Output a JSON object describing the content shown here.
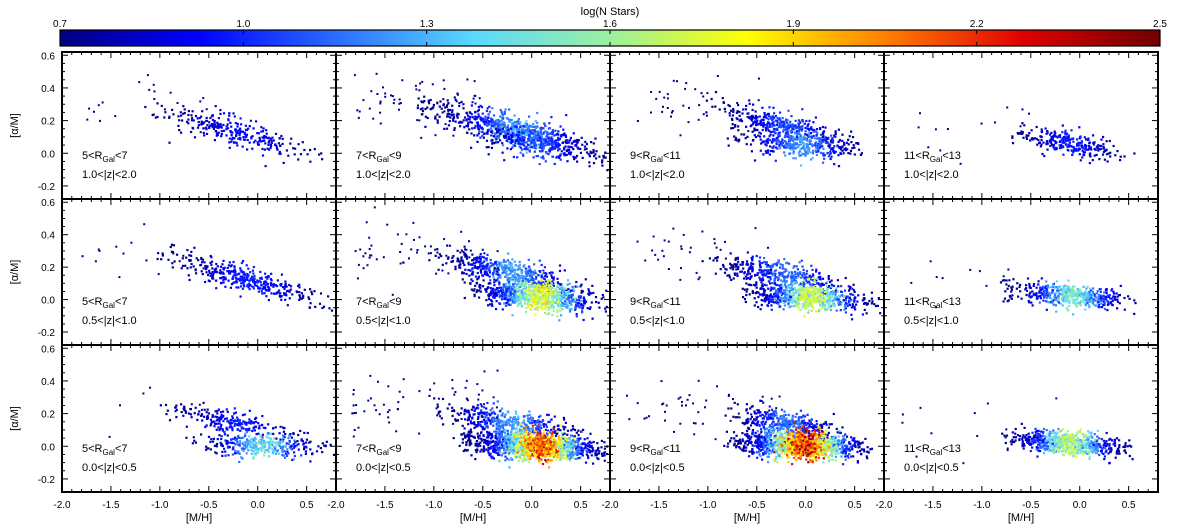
{
  "chart_data": {
    "type": "heatmap",
    "colorbar": {
      "label": "log(N Stars)",
      "min": 0.7,
      "max": 2.5,
      "tick_values": [
        0.7,
        1.0,
        1.3,
        1.6,
        1.9,
        2.2,
        2.5
      ],
      "tick_labels": [
        "0.7",
        "1.0",
        "1.3",
        "1.6",
        "1.9",
        "2.2",
        "2.5"
      ],
      "stops": [
        "#000080",
        "#0000ff",
        "#2a6cff",
        "#5ad8ff",
        "#9bf0a0",
        "#ffff00",
        "#ff8000",
        "#e00000",
        "#700000"
      ],
      "placement": "top"
    },
    "x_axis": {
      "label": "[M/H]",
      "range": [
        -2.0,
        0.8
      ],
      "tick_values": [
        -2.0,
        -1.5,
        -1.0,
        -0.5,
        0.0,
        0.5
      ],
      "tick_labels": [
        "-2.0",
        "-1.5",
        "-1.0",
        "-0.5",
        "0.0",
        "0.5"
      ]
    },
    "y_axis": {
      "label": "[α/M]",
      "range": [
        -0.28,
        0.62
      ],
      "tick_values": [
        -0.2,
        0.0,
        0.2,
        0.4,
        0.6
      ],
      "tick_labels": [
        "-0.2",
        "0.0",
        "0.2",
        "0.4",
        "0.6"
      ]
    },
    "grid": false,
    "panels": [
      {
        "row": 0,
        "col": 0,
        "r_label": "5<R",
        "r_sub": "Gal",
        "r_hi": "<7",
        "z_label": "1.0<|z|<2.0",
        "n": 280,
        "noise": 0.04,
        "outliers": 22,
        "ridges": [
          {
            "x0": -0.9,
            "y0": 0.25,
            "x1": 0.45,
            "y1": 0.02,
            "weight": 1.0,
            "peak": 0.95
          }
        ]
      },
      {
        "row": 0,
        "col": 1,
        "r_label": "7<R",
        "r_sub": "Gal",
        "r_hi": "<9",
        "z_label": "1.0<|z|<2.0",
        "n": 950,
        "noise": 0.045,
        "outliers": 70,
        "ridges": [
          {
            "x0": -0.9,
            "y0": 0.26,
            "x1": 0.5,
            "y1": 0.04,
            "weight": 0.75,
            "peak": 1.3
          },
          {
            "x0": -0.5,
            "y0": 0.12,
            "x1": 0.5,
            "y1": 0.02,
            "weight": 0.25,
            "peak": 1.1
          }
        ]
      },
      {
        "row": 0,
        "col": 2,
        "r_label": "9<R",
        "r_sub": "Gal",
        "r_hi": "<11",
        "z_label": "1.0<|z|<2.0",
        "n": 720,
        "noise": 0.04,
        "outliers": 40,
        "ridges": [
          {
            "x0": -0.8,
            "y0": 0.26,
            "x1": 0.3,
            "y1": 0.1,
            "weight": 0.45,
            "peak": 1.1
          },
          {
            "x0": -0.6,
            "y0": 0.1,
            "x1": 0.4,
            "y1": 0.03,
            "weight": 0.55,
            "peak": 1.3
          }
        ]
      },
      {
        "row": 0,
        "col": 3,
        "r_label": "11<R",
        "r_sub": "Gal",
        "r_hi": "<13",
        "z_label": "1.0<|z|<2.0",
        "n": 260,
        "noise": 0.035,
        "outliers": 14,
        "ridges": [
          {
            "x0": -0.6,
            "y0": 0.12,
            "x1": 0.3,
            "y1": 0.02,
            "weight": 1.0,
            "peak": 1.0
          }
        ]
      },
      {
        "row": 1,
        "col": 0,
        "r_label": "5<R",
        "r_sub": "Gal",
        "r_hi": "<7",
        "z_label": "0.5<|z|<1.0",
        "n": 380,
        "noise": 0.04,
        "outliers": 14,
        "ridges": [
          {
            "x0": -0.8,
            "y0": 0.25,
            "x1": 0.5,
            "y1": 0.02,
            "weight": 1.0,
            "peak": 1.0
          }
        ]
      },
      {
        "row": 1,
        "col": 1,
        "r_label": "7<R",
        "r_sub": "Gal",
        "r_hi": "<9",
        "z_label": "0.5<|z|<1.0",
        "n": 1350,
        "noise": 0.04,
        "outliers": 60,
        "ridges": [
          {
            "x0": -0.8,
            "y0": 0.24,
            "x1": 0.3,
            "y1": 0.1,
            "weight": 0.35,
            "peak": 1.3
          },
          {
            "x0": -0.5,
            "y0": 0.06,
            "x1": 0.55,
            "y1": 0.0,
            "weight": 0.65,
            "peak": 1.85
          }
        ]
      },
      {
        "row": 1,
        "col": 2,
        "r_label": "9<R",
        "r_sub": "Gal",
        "r_hi": "<11",
        "z_label": "0.5<|z|<1.0",
        "n": 1050,
        "noise": 0.04,
        "outliers": 40,
        "ridges": [
          {
            "x0": -0.8,
            "y0": 0.22,
            "x1": 0.3,
            "y1": 0.1,
            "weight": 0.35,
            "peak": 1.2
          },
          {
            "x0": -0.5,
            "y0": 0.05,
            "x1": 0.5,
            "y1": 0.0,
            "weight": 0.65,
            "peak": 1.8
          }
        ]
      },
      {
        "row": 1,
        "col": 3,
        "r_label": "11<R",
        "r_sub": "Gal",
        "r_hi": "<13",
        "z_label": "0.5<|z|<1.0",
        "n": 500,
        "noise": 0.035,
        "outliers": 14,
        "ridges": [
          {
            "x0": -0.6,
            "y0": 0.06,
            "x1": 0.35,
            "y1": 0.0,
            "weight": 1.0,
            "peak": 1.55
          }
        ]
      },
      {
        "row": 2,
        "col": 0,
        "r_label": "5<R",
        "r_sub": "Gal",
        "r_hi": "<7",
        "z_label": "0.0<|z|<0.5",
        "n": 560,
        "noise": 0.035,
        "outliers": 12,
        "ridges": [
          {
            "x0": -0.8,
            "y0": 0.22,
            "x1": 0.3,
            "y1": 0.08,
            "weight": 0.4,
            "peak": 1.0
          },
          {
            "x0": -0.5,
            "y0": 0.02,
            "x1": 0.5,
            "y1": 0.0,
            "weight": 0.6,
            "peak": 1.5
          }
        ]
      },
      {
        "row": 2,
        "col": 1,
        "r_label": "7<R",
        "r_sub": "Gal",
        "r_hi": "<9",
        "z_label": "0.0<|z|<0.5",
        "n": 1800,
        "noise": 0.04,
        "outliers": 70,
        "ridges": [
          {
            "x0": -0.8,
            "y0": 0.2,
            "x1": 0.3,
            "y1": 0.1,
            "weight": 0.25,
            "peak": 1.3
          },
          {
            "x0": -0.5,
            "y0": 0.03,
            "x1": 0.55,
            "y1": -0.01,
            "weight": 0.75,
            "peak": 2.25
          }
        ]
      },
      {
        "row": 2,
        "col": 2,
        "r_label": "9<R",
        "r_sub": "Gal",
        "r_hi": "<11",
        "z_label": "0.0<|z|<0.5",
        "n": 1600,
        "noise": 0.04,
        "outliers": 50,
        "ridges": [
          {
            "x0": -0.7,
            "y0": 0.2,
            "x1": 0.2,
            "y1": 0.1,
            "weight": 0.22,
            "peak": 1.2
          },
          {
            "x0": -0.6,
            "y0": 0.03,
            "x1": 0.45,
            "y1": 0.0,
            "weight": 0.78,
            "peak": 2.35
          }
        ]
      },
      {
        "row": 2,
        "col": 3,
        "r_label": "11<R",
        "r_sub": "Gal",
        "r_hi": "<13",
        "z_label": "0.0<|z|<0.5",
        "n": 650,
        "noise": 0.035,
        "outliers": 14,
        "ridges": [
          {
            "x0": -0.6,
            "y0": 0.05,
            "x1": 0.3,
            "y1": 0.0,
            "weight": 1.0,
            "peak": 1.75
          }
        ]
      }
    ]
  }
}
